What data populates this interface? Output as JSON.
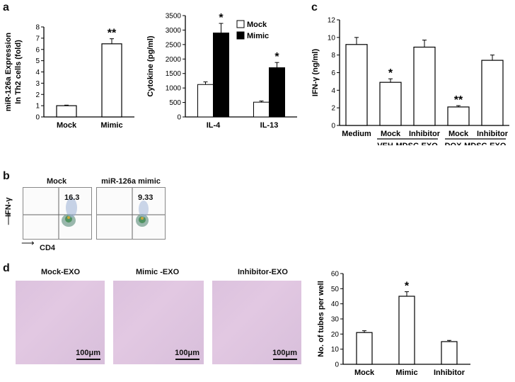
{
  "panel_letters": {
    "a": "a",
    "b": "b",
    "c": "c",
    "d": "d"
  },
  "chart_data": [
    {
      "id": "a1",
      "type": "bar",
      "categories": [
        "Mock",
        "Mimic"
      ],
      "values": [
        1.0,
        6.5
      ],
      "errors": [
        0.05,
        0.45
      ],
      "ylabel_line1": "miR-126a Expression",
      "ylabel_line2": "In Th2 cells  (fold)",
      "ylim": [
        0,
        8
      ],
      "yticks": [
        0,
        1,
        2,
        3,
        4,
        5,
        6,
        7,
        8
      ],
      "significance": [
        "",
        "**"
      ]
    },
    {
      "id": "a2",
      "type": "bar",
      "categories": [
        "IL-4",
        "IL-13"
      ],
      "series": [
        {
          "name": "Mock",
          "values": [
            1120,
            510
          ],
          "errors": [
            90,
            40
          ],
          "color": "#ffffff"
        },
        {
          "name": "Mimic",
          "values": [
            2900,
            1700
          ],
          "errors": [
            330,
            180
          ],
          "color": "#000000"
        }
      ],
      "ylabel": "Cytokine (pg/ml)",
      "ylim": [
        0,
        3500
      ],
      "yticks": [
        0,
        500,
        1000,
        1500,
        2000,
        2500,
        3000,
        3500
      ],
      "significance": [
        [
          "",
          "*"
        ],
        [
          "",
          "*"
        ]
      ],
      "legend": "top-right"
    },
    {
      "id": "c",
      "type": "bar",
      "categories": [
        "Medium",
        "Mock",
        "Inhibitor",
        "Mock",
        "Inhibitor"
      ],
      "values": [
        9.2,
        4.9,
        8.9,
        2.1,
        7.4
      ],
      "errors": [
        0.8,
        0.4,
        0.8,
        0.15,
        0.6
      ],
      "ylabel": "IFN-γ  (ng/ml)",
      "ylim": [
        0,
        12
      ],
      "yticks": [
        0,
        2,
        4,
        6,
        8,
        10,
        12
      ],
      "significance": [
        "",
        "*",
        "",
        "**",
        ""
      ],
      "groups": [
        {
          "label": "VEH-MDSC-EXO",
          "from": 1,
          "to": 2
        },
        {
          "label": "DOX-MDSC-EXO",
          "from": 3,
          "to": 4
        }
      ]
    },
    {
      "id": "d",
      "type": "bar",
      "categories": [
        "Mock",
        "Mimic",
        "Inhibitor"
      ],
      "values": [
        21,
        45,
        15
      ],
      "errors": [
        1.2,
        3.0,
        0.8
      ],
      "ylabel": "No. of tubes per well",
      "ylim": [
        0,
        60
      ],
      "yticks": [
        0,
        10,
        20,
        30,
        40,
        50,
        60
      ],
      "significance": [
        "",
        "*",
        ""
      ]
    }
  ],
  "flow": {
    "plots": [
      {
        "title": "Mock",
        "value": "16.3",
        "color": "#4a6fb5"
      },
      {
        "title": "miR-126a mimic",
        "value": "9.33",
        "color": "#4a6fb5"
      }
    ],
    "y_axis_label": "IFN-γ",
    "x_axis_label": "CD4"
  },
  "micrographs": [
    {
      "title": "Mock-EXO",
      "scale": "100μm"
    },
    {
      "title": "Mimic -EXO",
      "scale": "100μm"
    },
    {
      "title": "Inhibitor-EXO",
      "scale": "100μm"
    }
  ]
}
